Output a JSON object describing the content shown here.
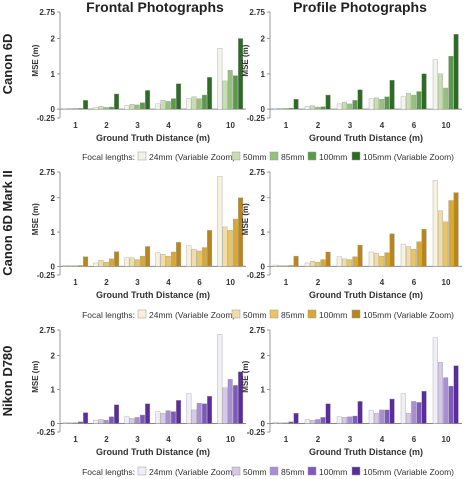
{
  "column_titles": [
    "Frontal Photographs",
    "Profile Photographs"
  ],
  "legend": {
    "prefix": "Focal lengths:",
    "labels": [
      "24mm (Variable Zoom)",
      "50mm",
      "85mm",
      "100mm",
      "105mm (Variable Zoom)"
    ]
  },
  "chart_data": [
    {
      "type": "bar",
      "row_title": "Canon 6D",
      "column": "Frontal Photographs",
      "categories": [
        "1",
        "2",
        "3",
        "4",
        "6",
        "10"
      ],
      "xlabel": "Ground Truth Distance (m)",
      "ylabel": "MSE (m)",
      "ylim": [
        -0.25,
        2.75
      ],
      "yticks": [
        "-0.25",
        "0",
        "1",
        "2",
        "2.75"
      ],
      "grid": false,
      "colors": [
        "#f1f4e8",
        "#c9deb0",
        "#95c07e",
        "#5a9a48",
        "#2e6b26"
      ],
      "series": [
        {
          "name": "24mm (Variable Zoom)",
          "values": [
            0.02,
            0.05,
            0.1,
            0.15,
            0.3,
            1.72
          ]
        },
        {
          "name": "50mm",
          "values": [
            0.01,
            0.08,
            0.14,
            0.25,
            0.35,
            0.8
          ]
        },
        {
          "name": "85mm",
          "values": [
            0.01,
            0.05,
            0.12,
            0.22,
            0.3,
            1.1
          ]
        },
        {
          "name": "100mm",
          "values": [
            0.02,
            0.06,
            0.18,
            0.3,
            0.4,
            0.95
          ]
        },
        {
          "name": "105mm (Variable Zoom)",
          "values": [
            0.25,
            0.43,
            0.53,
            0.72,
            0.9,
            2.0
          ]
        }
      ]
    },
    {
      "type": "bar",
      "row_title": "Canon 6D",
      "column": "Profile Photographs",
      "categories": [
        "1",
        "2",
        "3",
        "4",
        "6",
        "10"
      ],
      "xlabel": "Ground Truth Distance (m)",
      "ylabel": "MSE (m)",
      "ylim": [
        -0.25,
        2.75
      ],
      "yticks": [
        "-0.25",
        "0",
        "1",
        "2",
        "2.75"
      ],
      "grid": false,
      "colors": [
        "#f1f4e8",
        "#c9deb0",
        "#95c07e",
        "#5a9a48",
        "#2e6b26"
      ],
      "series": [
        {
          "name": "24mm (Variable Zoom)",
          "values": [
            0.03,
            0.08,
            0.15,
            0.3,
            0.35,
            1.4
          ]
        },
        {
          "name": "50mm",
          "values": [
            0.02,
            0.1,
            0.2,
            0.32,
            0.45,
            1.0
          ]
        },
        {
          "name": "85mm",
          "values": [
            0.02,
            0.06,
            0.15,
            0.28,
            0.4,
            0.6
          ]
        },
        {
          "name": "100mm",
          "values": [
            0.03,
            0.07,
            0.25,
            0.35,
            0.5,
            1.5
          ]
        },
        {
          "name": "105mm (Variable Zoom)",
          "values": [
            0.28,
            0.4,
            0.55,
            0.82,
            1.0,
            2.12
          ]
        }
      ]
    },
    {
      "type": "bar",
      "row_title": "Canon 6D Mark II",
      "column": "Frontal Photographs",
      "categories": [
        "1",
        "2",
        "3",
        "4",
        "6",
        "10"
      ],
      "xlabel": "Ground Truth Distance (m)",
      "ylabel": "MSE (m)",
      "ylim": [
        -0.25,
        2.75
      ],
      "yticks": [
        "-0.25",
        "0",
        "1",
        "2",
        "2.75"
      ],
      "grid": false,
      "colors": [
        "#f8f1dc",
        "#f2dea4",
        "#e8c563",
        "#d9a832",
        "#b8861d"
      ],
      "series": [
        {
          "name": "24mm (Variable Zoom)",
          "values": [
            0.03,
            0.1,
            0.25,
            0.4,
            0.6,
            2.62
          ]
        },
        {
          "name": "50mm",
          "values": [
            0.01,
            0.18,
            0.25,
            0.35,
            0.5,
            1.15
          ]
        },
        {
          "name": "85mm",
          "values": [
            0.02,
            0.12,
            0.2,
            0.3,
            0.45,
            1.05
          ]
        },
        {
          "name": "100mm",
          "values": [
            0.03,
            0.22,
            0.3,
            0.42,
            0.55,
            1.38
          ]
        },
        {
          "name": "105mm (Variable Zoom)",
          "values": [
            0.28,
            0.43,
            0.58,
            0.7,
            1.05,
            2.0
          ]
        }
      ]
    },
    {
      "type": "bar",
      "row_title": "Canon 6D Mark II",
      "column": "Profile Photographs",
      "categories": [
        "1",
        "2",
        "3",
        "4",
        "6",
        "10"
      ],
      "xlabel": "Ground Truth Distance (m)",
      "ylabel": "MSE (m)",
      "ylim": [
        -0.25,
        2.75
      ],
      "yticks": [
        "-0.25",
        "0",
        "1",
        "2",
        "2.75"
      ],
      "grid": false,
      "colors": [
        "#f8f1dc",
        "#f2dea4",
        "#e8c563",
        "#d9a832",
        "#b8861d"
      ],
      "series": [
        {
          "name": "24mm (Variable Zoom)",
          "values": [
            0.04,
            0.1,
            0.28,
            0.42,
            0.65,
            2.5
          ]
        },
        {
          "name": "50mm",
          "values": [
            0.03,
            0.15,
            0.22,
            0.38,
            0.58,
            1.62
          ]
        },
        {
          "name": "85mm",
          "values": [
            0.02,
            0.12,
            0.2,
            0.3,
            0.5,
            1.3
          ]
        },
        {
          "name": "100mm",
          "values": [
            0.03,
            0.2,
            0.28,
            0.4,
            0.72,
            1.92
          ]
        },
        {
          "name": "105mm (Variable Zoom)",
          "values": [
            0.3,
            0.42,
            0.62,
            0.95,
            1.08,
            2.15
          ]
        }
      ]
    },
    {
      "type": "bar",
      "row_title": "Nikon D780",
      "column": "Frontal Photographs",
      "categories": [
        "1",
        "2",
        "3",
        "4",
        "6",
        "10"
      ],
      "xlabel": "Ground Truth Distance (m)",
      "ylabel": "MSE (m)",
      "ylim": [
        -0.25,
        2.75
      ],
      "yticks": [
        "-0.25",
        "0",
        "1",
        "2",
        "2.75"
      ],
      "grid": false,
      "colors": [
        "#f1eef7",
        "#d4c9e8",
        "#a98ed3",
        "#7e57bf",
        "#5a2d9a"
      ],
      "series": [
        {
          "name": "24mm (Variable Zoom)",
          "values": [
            0.03,
            0.1,
            0.2,
            0.35,
            0.88,
            2.62
          ]
        },
        {
          "name": "50mm",
          "values": [
            0.02,
            0.12,
            0.15,
            0.3,
            0.4,
            1.05
          ]
        },
        {
          "name": "85mm",
          "values": [
            0.02,
            0.1,
            0.18,
            0.38,
            0.6,
            1.3
          ]
        },
        {
          "name": "100mm",
          "values": [
            0.05,
            0.2,
            0.25,
            0.35,
            0.58,
            1.12
          ]
        },
        {
          "name": "105mm (Variable Zoom)",
          "values": [
            0.32,
            0.55,
            0.58,
            0.68,
            0.8,
            1.52
          ]
        }
      ]
    },
    {
      "type": "bar",
      "row_title": "Nikon D780",
      "column": "Profile Photographs",
      "categories": [
        "1",
        "2",
        "3",
        "4",
        "6",
        "10"
      ],
      "xlabel": "Ground Truth Distance (m)",
      "ylabel": "MSE (m)",
      "ylim": [
        -0.25,
        2.75
      ],
      "yticks": [
        "-0.25",
        "0",
        "1",
        "2",
        "2.75"
      ],
      "grid": false,
      "colors": [
        "#f1eef7",
        "#d4c9e8",
        "#a98ed3",
        "#7e57bf",
        "#5a2d9a"
      ],
      "series": [
        {
          "name": "24mm (Variable Zoom)",
          "values": [
            0.04,
            0.12,
            0.2,
            0.38,
            0.88,
            2.52
          ]
        },
        {
          "name": "50mm",
          "values": [
            0.02,
            0.1,
            0.18,
            0.3,
            0.3,
            1.8
          ]
        },
        {
          "name": "85mm",
          "values": [
            0.02,
            0.12,
            0.2,
            0.4,
            0.65,
            1.35
          ]
        },
        {
          "name": "100mm",
          "values": [
            0.05,
            0.18,
            0.22,
            0.4,
            0.62,
            1.1
          ]
        },
        {
          "name": "105mm (Variable Zoom)",
          "values": [
            0.3,
            0.58,
            0.65,
            0.72,
            0.95,
            1.7
          ]
        }
      ]
    }
  ]
}
